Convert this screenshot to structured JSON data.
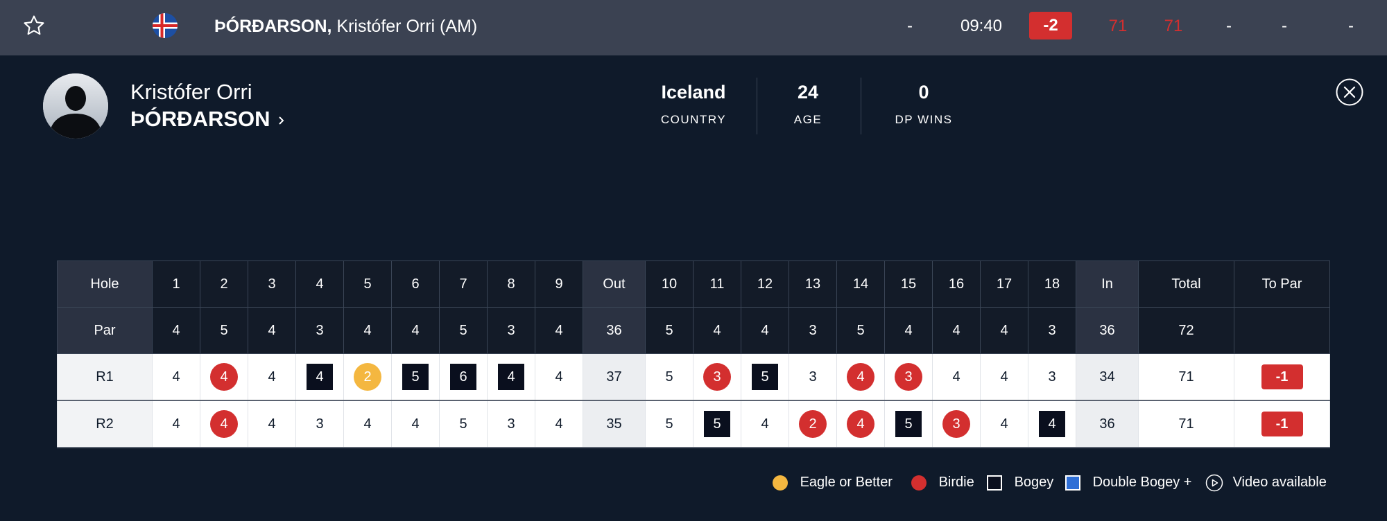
{
  "topbar": {
    "name_last": "ÞÓRÐARSON,",
    "name_first": "Kristófer Orri (AM)",
    "pos": "-",
    "tee_time": "09:40",
    "to_par": "-2",
    "r1": "71",
    "r2": "71",
    "r3": "-",
    "r4": "-",
    "total": "-"
  },
  "profile": {
    "first_name": "Kristófer Orri",
    "last_name": "ÞÓRÐARSON",
    "stats": [
      {
        "value": "Iceland",
        "label": "COUNTRY"
      },
      {
        "value": "24",
        "label": "AGE"
      },
      {
        "value": "0",
        "label": "DP WINS"
      }
    ]
  },
  "scorecard": {
    "hole_label": "Hole",
    "par_label": "Par",
    "headers": [
      "1",
      "2",
      "3",
      "4",
      "5",
      "6",
      "7",
      "8",
      "9",
      "Out",
      "10",
      "11",
      "12",
      "13",
      "14",
      "15",
      "16",
      "17",
      "18",
      "In",
      "Total",
      "To Par"
    ],
    "par": [
      "4",
      "5",
      "4",
      "3",
      "4",
      "4",
      "5",
      "3",
      "4",
      "36",
      "5",
      "4",
      "4",
      "3",
      "5",
      "4",
      "4",
      "4",
      "3",
      "36",
      "72",
      ""
    ],
    "rounds": [
      {
        "label": "R1",
        "scores": [
          "4",
          "4",
          "4",
          "4",
          "2",
          "5",
          "6",
          "4",
          "4",
          "37",
          "5",
          "3",
          "5",
          "3",
          "4",
          "3",
          "4",
          "4",
          "3",
          "34",
          "71",
          "-1"
        ],
        "types": [
          "",
          "birdie",
          "",
          "bogey",
          "eagle",
          "bogey",
          "bogey",
          "bogey",
          "",
          "",
          "",
          "birdie",
          "bogey",
          "",
          "birdie",
          "birdie",
          "",
          "",
          "",
          "",
          "",
          ""
        ]
      },
      {
        "label": "R2",
        "scores": [
          "4",
          "4",
          "4",
          "3",
          "4",
          "4",
          "5",
          "3",
          "4",
          "35",
          "5",
          "5",
          "4",
          "2",
          "4",
          "5",
          "3",
          "4",
          "4",
          "36",
          "71",
          "-1"
        ],
        "types": [
          "",
          "birdie",
          "",
          "",
          "",
          "",
          "",
          "",
          "",
          "",
          "",
          "bogey",
          "",
          "birdie",
          "birdie",
          "bogey",
          "birdie",
          "",
          "bogey",
          "",
          "",
          ""
        ]
      }
    ]
  },
  "legend": {
    "eagle": "Eagle or Better",
    "birdie": "Birdie",
    "bogey": "Bogey",
    "double": "Double Bogey +",
    "video": "Video available"
  },
  "colors": {
    "birdie": "#d32f2f",
    "eagle": "#f4b740",
    "bogey": "#0a0f1e",
    "double_bogey": "#2f6fd6"
  }
}
